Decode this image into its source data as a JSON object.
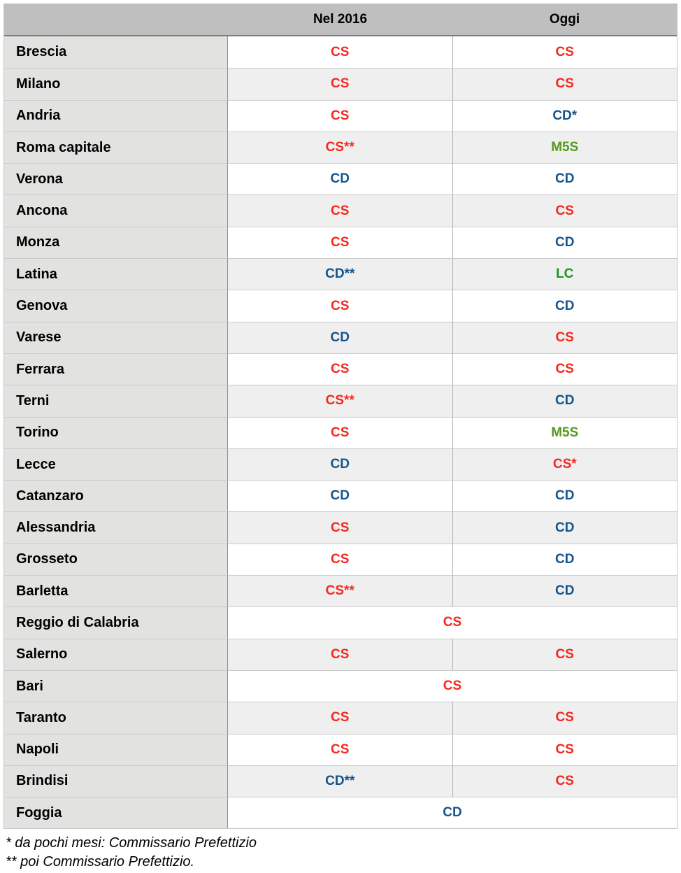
{
  "chart_data": {
    "type": "table",
    "title": "",
    "columns": [
      "",
      "Nel 2016",
      "Oggi"
    ],
    "rows": [
      {
        "city": "Brescia",
        "nel2016": "CS",
        "oggi": "CS"
      },
      {
        "city": "Milano",
        "nel2016": "CS",
        "oggi": "CS"
      },
      {
        "city": "Andria",
        "nel2016": "CS",
        "oggi": "CD*"
      },
      {
        "city": "Roma capitale",
        "nel2016": "CS**",
        "oggi": "M5S"
      },
      {
        "city": "Verona",
        "nel2016": "CD",
        "oggi": "CD"
      },
      {
        "city": "Ancona",
        "nel2016": "CS",
        "oggi": "CS"
      },
      {
        "city": "Monza",
        "nel2016": "CS",
        "oggi": "CD"
      },
      {
        "city": "Latina",
        "nel2016": "CD**",
        "oggi": "LC"
      },
      {
        "city": "Genova",
        "nel2016": "CS",
        "oggi": "CD"
      },
      {
        "city": "Varese",
        "nel2016": "CD",
        "oggi": "CS"
      },
      {
        "city": "Ferrara",
        "nel2016": "CS",
        "oggi": "CS"
      },
      {
        "city": "Terni",
        "nel2016": "CS**",
        "oggi": "CD"
      },
      {
        "city": "Torino",
        "nel2016": "CS",
        "oggi": "M5S"
      },
      {
        "city": "Lecce",
        "nel2016": "CD",
        "oggi": "CS*"
      },
      {
        "city": "Catanzaro",
        "nel2016": "CD",
        "oggi": "CD"
      },
      {
        "city": "Alessandria",
        "nel2016": "CS",
        "oggi": "CD"
      },
      {
        "city": "Grosseto",
        "nel2016": "CS",
        "oggi": "CD"
      },
      {
        "city": "Barletta",
        "nel2016": "CS**",
        "oggi": "CD"
      },
      {
        "city": "Reggio di Calabria",
        "merged": "CS"
      },
      {
        "city": "Salerno",
        "nel2016": "CS",
        "oggi": "CS"
      },
      {
        "city": "Bari",
        "merged": "CS"
      },
      {
        "city": "Taranto",
        "nel2016": "CS",
        "oggi": "CS"
      },
      {
        "city": "Napoli",
        "nel2016": "CS",
        "oggi": "CS"
      },
      {
        "city": "Brindisi",
        "nel2016": "CD**",
        "oggi": "CS"
      },
      {
        "city": "Foggia",
        "merged": "CD"
      }
    ],
    "notes": [
      "* da pochi mesi: Commissario Prefettizio",
      "** poi Commissario Prefettizio."
    ]
  },
  "party_colors": {
    "CS": "#f6281e",
    "CD": "#16548c",
    "M5S": "#569a1e",
    "LC": "#1b9620"
  },
  "footnotes": {
    "line1": "* da pochi mesi: Commissario Prefettizio",
    "line2": "** poi Commissario Prefettizio."
  }
}
